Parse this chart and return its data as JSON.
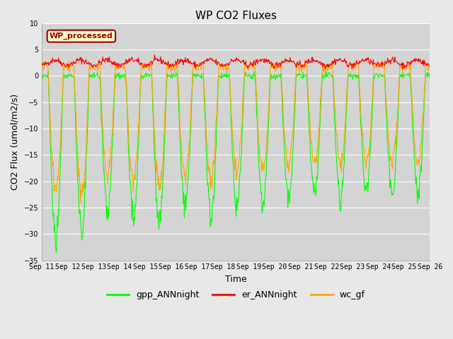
{
  "title": "WP CO2 Fluxes",
  "xlabel": "Time",
  "ylabel": "CO2 Flux (umol/m2/s)",
  "ylim": [
    -35,
    10
  ],
  "yticks": [
    -35,
    -30,
    -25,
    -20,
    -15,
    -10,
    -5,
    0,
    5,
    10
  ],
  "background_color": "#e8e8e8",
  "plot_bg_color": "#d4d4d4",
  "gpp_color": "#00ff00",
  "er_color": "#ff0000",
  "wc_color": "#ffa500",
  "legend_label": "WP_processed",
  "legend_facecolor": "#ffffcc",
  "legend_edgecolor": "#990000",
  "n_days": 15,
  "start_day": 11,
  "points_per_day": 48,
  "er_base": 2.5,
  "gpp_min": -28,
  "wc_amplitude": 22
}
